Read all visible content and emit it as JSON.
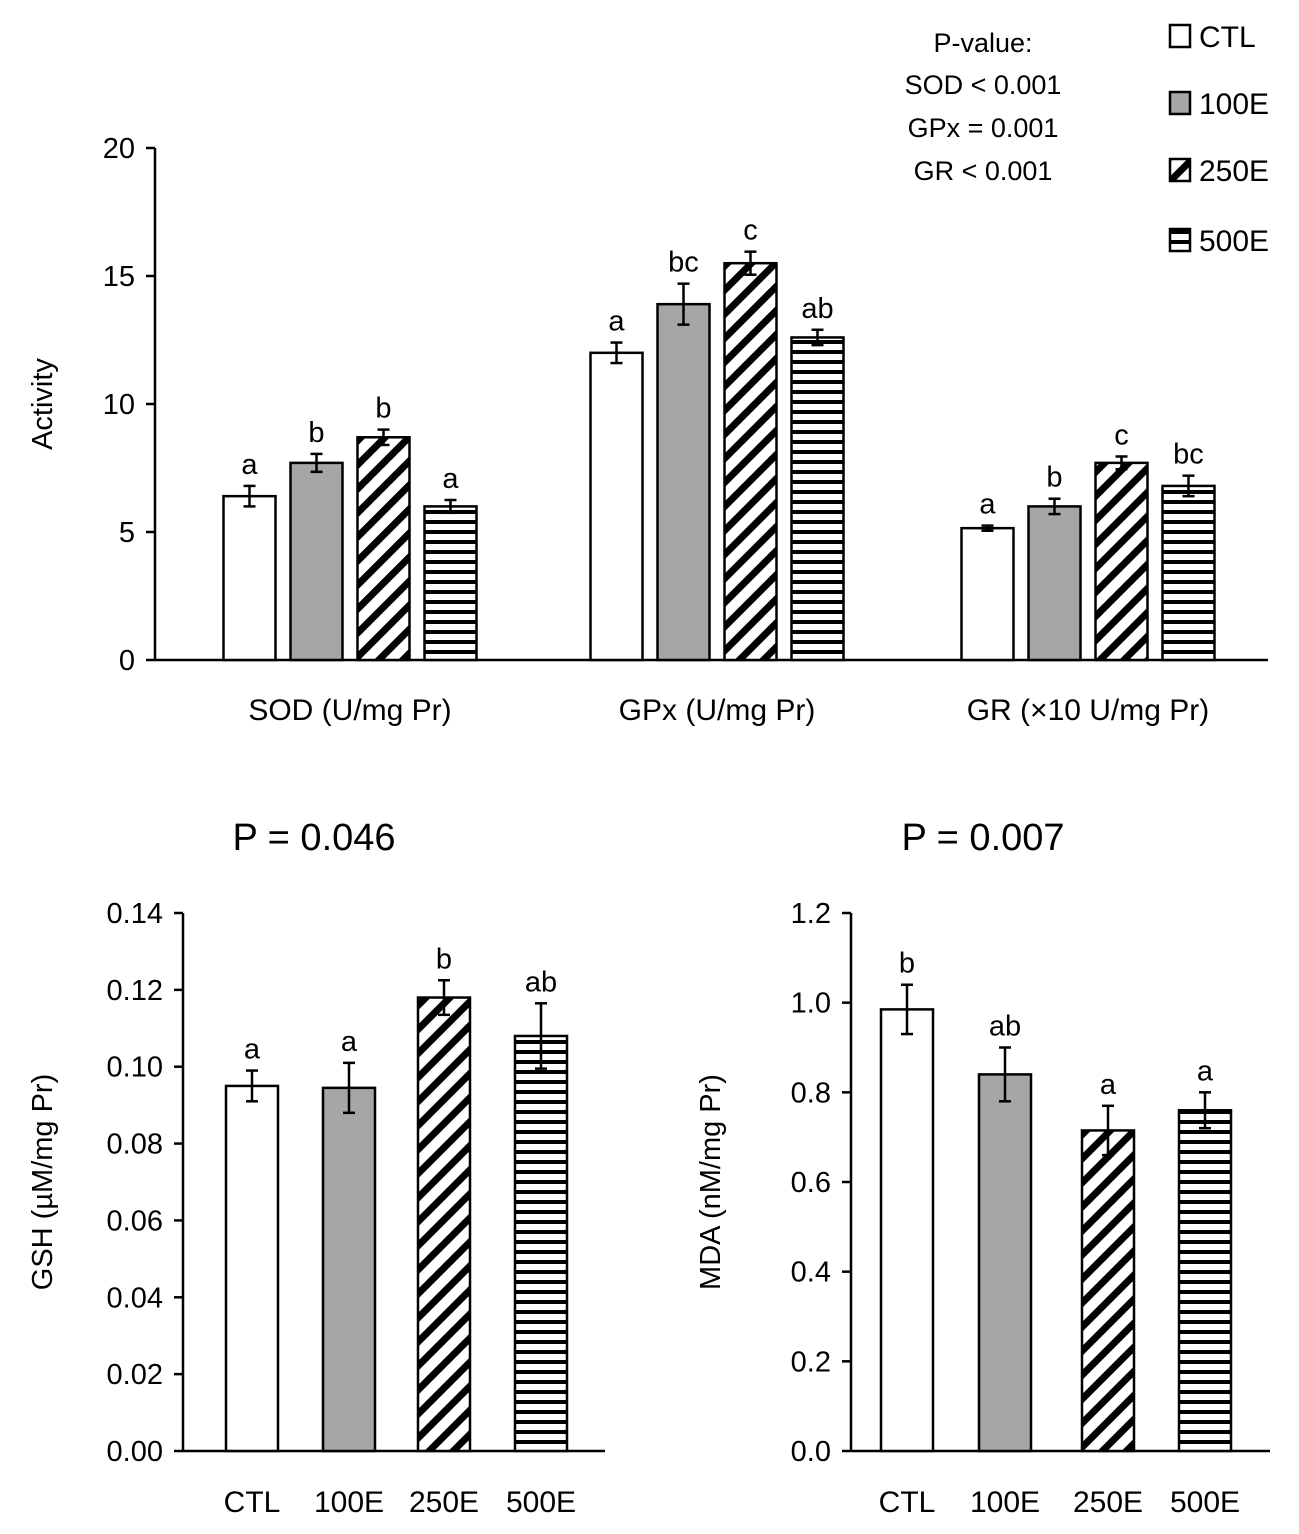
{
  "legend": {
    "items": [
      {
        "label": "CTL",
        "pattern": "white"
      },
      {
        "label": "100E",
        "pattern": "gray"
      },
      {
        "label": "250E",
        "pattern": "diag"
      },
      {
        "label": "500E",
        "pattern": "horiz"
      }
    ]
  },
  "pvalue_note": {
    "title": "P-value:",
    "lines": [
      "SOD < 0.001",
      "GPx = 0.001",
      "GR < 0.001"
    ]
  },
  "colors": {
    "white_fill": "#ffffff",
    "gray_fill": "#a6a6a6",
    "stroke": "#000000"
  },
  "chart_data": [
    {
      "id": "enzymes",
      "type": "bar",
      "title": "",
      "ylabel": "Activity",
      "xlabel": "",
      "ylim": [
        0,
        20
      ],
      "yticks": [
        "0",
        "5",
        "10",
        "15",
        "20"
      ],
      "ytick_values": [
        0,
        5,
        10,
        15,
        20
      ],
      "categories": [
        "SOD (U/mg Pr)",
        "GPx (U/mg Pr)",
        "GR (×10 U/mg Pr)"
      ],
      "series": [
        {
          "name": "CTL",
          "values": [
            6.4,
            12.0,
            5.15
          ],
          "errors": [
            0.4,
            0.4,
            0.1
          ],
          "letters": [
            "a",
            "a",
            "a"
          ]
        },
        {
          "name": "100E",
          "values": [
            7.7,
            13.9,
            6.0
          ],
          "errors": [
            0.35,
            0.8,
            0.3
          ],
          "letters": [
            "b",
            "bc",
            "b"
          ]
        },
        {
          "name": "250E",
          "values": [
            8.7,
            15.5,
            7.7
          ],
          "errors": [
            0.3,
            0.45,
            0.25
          ],
          "letters": [
            "b",
            "c",
            "c"
          ]
        },
        {
          "name": "500E",
          "values": [
            6.0,
            12.6,
            6.8
          ],
          "errors": [
            0.25,
            0.3,
            0.4
          ],
          "letters": [
            "a",
            "ab",
            "bc"
          ]
        }
      ]
    },
    {
      "id": "gsh",
      "type": "bar",
      "title": "P = 0.046",
      "ylabel": "GSH (µM/mg Pr)",
      "xlabel": "",
      "ylim": [
        0,
        0.14
      ],
      "yticks": [
        "0.00",
        "0.02",
        "0.04",
        "0.06",
        "0.08",
        "0.10",
        "0.12",
        "0.14"
      ],
      "ytick_values": [
        0,
        0.02,
        0.04,
        0.06,
        0.08,
        0.1,
        0.12,
        0.14
      ],
      "categories": [
        "CTL",
        "100E",
        "250E",
        "500E"
      ],
      "values": [
        0.095,
        0.0945,
        0.118,
        0.108
      ],
      "errors": [
        0.004,
        0.0065,
        0.0045,
        0.0085
      ],
      "letters": [
        "a",
        "a",
        "b",
        "ab"
      ]
    },
    {
      "id": "mda",
      "type": "bar",
      "title": "P = 0.007",
      "ylabel": "MDA (nM/mg Pr)",
      "xlabel": "",
      "ylim": [
        0,
        1.2
      ],
      "yticks": [
        "0.0",
        "0.2",
        "0.4",
        "0.6",
        "0.8",
        "1.0",
        "1.2"
      ],
      "ytick_values": [
        0,
        0.2,
        0.4,
        0.6,
        0.8,
        1.0,
        1.2
      ],
      "categories": [
        "CTL",
        "100E",
        "250E",
        "500E"
      ],
      "values": [
        0.985,
        0.84,
        0.715,
        0.76
      ],
      "errors": [
        0.055,
        0.06,
        0.055,
        0.04
      ],
      "letters": [
        "b",
        "ab",
        "a",
        "a"
      ]
    }
  ]
}
